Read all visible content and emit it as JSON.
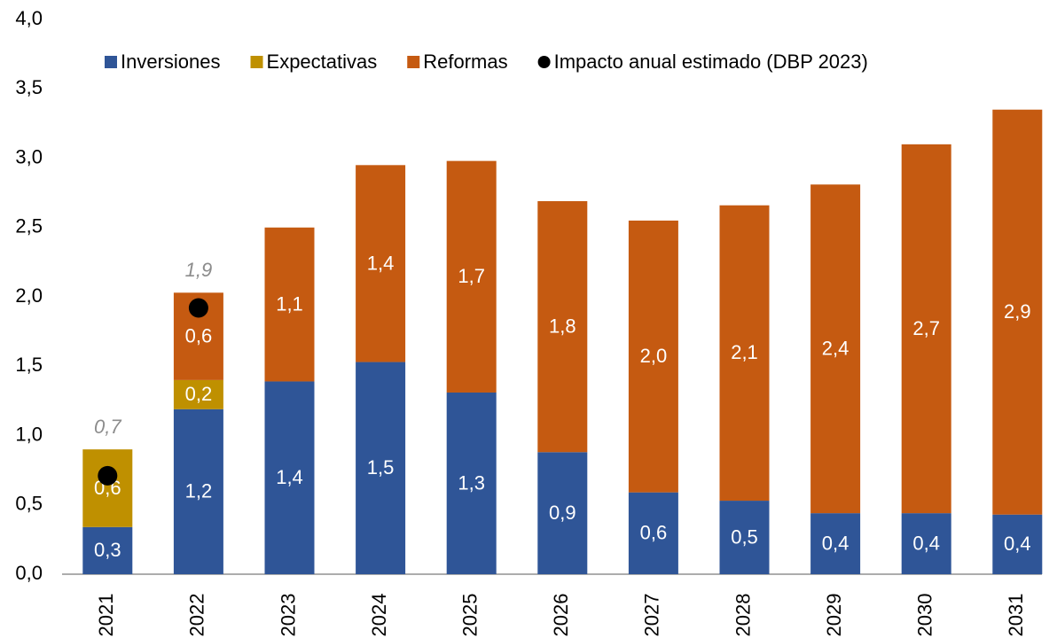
{
  "chart_data": {
    "type": "bar",
    "stacked": true,
    "categories": [
      "2021",
      "2022",
      "2023",
      "2024",
      "2025",
      "2026",
      "2027",
      "2028",
      "2029",
      "2030",
      "2031"
    ],
    "ylim": [
      0,
      4
    ],
    "yticks": [
      {
        "value": 0,
        "label": "0,0"
      },
      {
        "value": 0.5,
        "label": "0,5"
      },
      {
        "value": 1,
        "label": "1,0"
      },
      {
        "value": 1.5,
        "label": "1,5"
      },
      {
        "value": 2,
        "label": "2,0"
      },
      {
        "value": 2.5,
        "label": "2,5"
      },
      {
        "value": 3,
        "label": "3,0"
      },
      {
        "value": 3.5,
        "label": "3,5"
      },
      {
        "value": 4,
        "label": "4,0"
      }
    ],
    "grid": false,
    "legend": "top",
    "series": [
      {
        "name": "Inversiones",
        "color": "#2f5597",
        "values": [
          0.34,
          1.19,
          1.39,
          1.53,
          1.31,
          0.88,
          0.59,
          0.53,
          0.44,
          0.44,
          0.43
        ],
        "value_labels": [
          "0,3",
          "1,2",
          "1,4",
          "1,5",
          "1,3",
          "0,9",
          "0,6",
          "0,5",
          "0,4",
          "0,4",
          "0,4"
        ]
      },
      {
        "name": "Expectativas",
        "color": "#bf9000",
        "values": [
          0.56,
          0.21,
          null,
          null,
          null,
          null,
          null,
          null,
          null,
          null,
          null
        ],
        "value_labels": [
          "0,6",
          "0,2",
          null,
          null,
          null,
          null,
          null,
          null,
          null,
          null,
          null
        ]
      },
      {
        "name": "Reformas",
        "color": "#c55a11",
        "values": [
          null,
          0.63,
          1.11,
          1.42,
          1.67,
          1.81,
          1.96,
          2.13,
          2.37,
          2.66,
          2.92
        ],
        "value_labels": [
          null,
          "0,6",
          "1,1",
          "1,4",
          "1,7",
          "1,8",
          "2,0",
          "2,1",
          "2,4",
          "2,7",
          "2,9"
        ]
      },
      {
        "name": "Impacto anual estimado (DBP 2023)",
        "color": "#000000",
        "type": "scatter",
        "values": [
          0.71,
          1.92,
          null,
          null,
          null,
          null,
          null,
          null,
          null,
          null,
          null
        ],
        "value_labels": [
          "0,7",
          "1,9",
          null,
          null,
          null,
          null,
          null,
          null,
          null,
          null,
          null
        ]
      }
    ]
  }
}
